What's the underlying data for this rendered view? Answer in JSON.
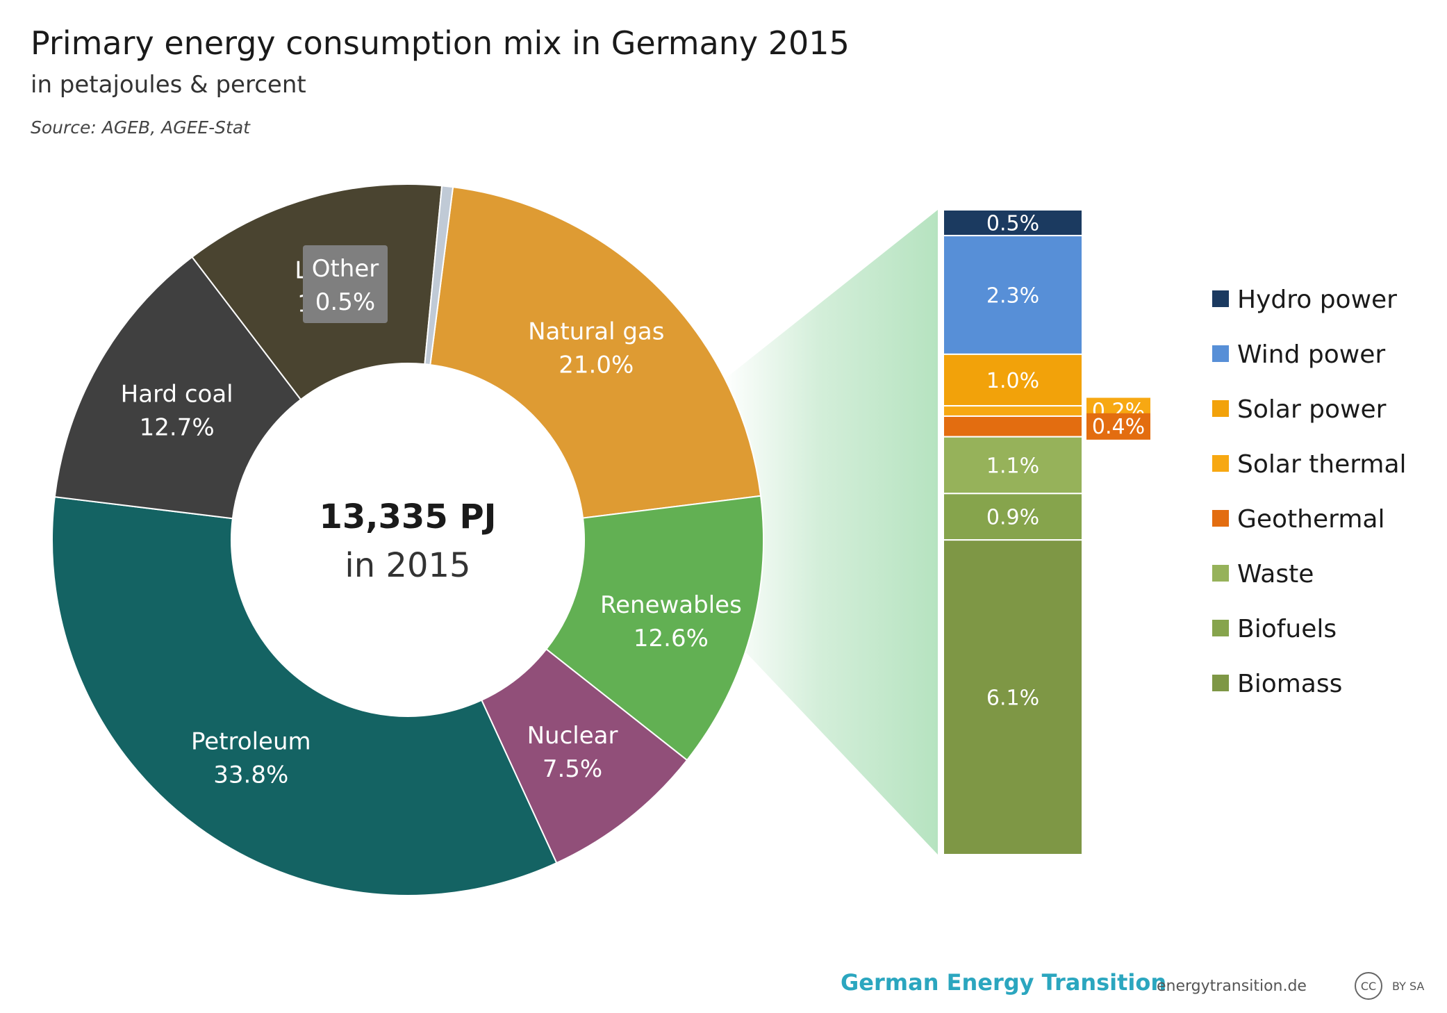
{
  "title": "Primary energy consumption mix in Germany 2015",
  "subtitle": "in petajoules & percent",
  "source": "Source: AGEB, AGEE-Stat",
  "center": {
    "total": "13,335 PJ",
    "year": "in 2015"
  },
  "chart_data": [
    {
      "type": "pie",
      "style": "donut",
      "total_pj": 13335,
      "slices": [
        {
          "name": "Natural gas",
          "value": 21.0,
          "label": "21.0%",
          "color": "#de9b33"
        },
        {
          "name": "Renewables",
          "value": 12.6,
          "label": "12.6%",
          "color": "#62b053"
        },
        {
          "name": "Nuclear",
          "value": 7.5,
          "label": "7.5%",
          "color": "#914f79"
        },
        {
          "name": "Petroleum",
          "value": 33.8,
          "label": "33.8%",
          "color": "#146363"
        },
        {
          "name": "Hard coal",
          "value": 12.7,
          "label": "12.7%",
          "color": "#404040"
        },
        {
          "name": "Lignite",
          "value": 11.9,
          "label": "11.9%",
          "color": "#4a4430"
        },
        {
          "name": "Other",
          "value": 0.5,
          "label": "0.5%",
          "color": "#c0cad6",
          "label_box_color": "#7f7f7f"
        }
      ]
    },
    {
      "type": "bar",
      "style": "stacked",
      "breakdown_of": "Renewables",
      "segments": [
        {
          "name": "Hydro power",
          "value": 0.5,
          "label": "0.5%",
          "color": "#1b3a60"
        },
        {
          "name": "Wind power",
          "value": 2.3,
          "label": "2.3%",
          "color": "#578fd7"
        },
        {
          "name": "Solar power",
          "value": 1.0,
          "label": "1.0%",
          "color": "#f2a20a"
        },
        {
          "name": "Solar thermal",
          "value": 0.2,
          "label": "0.2%",
          "color": "#f7a812",
          "callout": true
        },
        {
          "name": "Geothermal",
          "value": 0.4,
          "label": "0.4%",
          "color": "#e36d10",
          "callout": true
        },
        {
          "name": "Waste",
          "value": 1.1,
          "label": "1.1%",
          "color": "#96b25a"
        },
        {
          "name": "Biofuels",
          "value": 0.9,
          "label": "0.9%",
          "color": "#86a44c"
        },
        {
          "name": "Biomass",
          "value": 6.1,
          "label": "6.1%",
          "color": "#7e9745"
        }
      ]
    }
  ],
  "footer": {
    "brand": "German Energy Transition",
    "url": "energytransition.de",
    "cc": "CC",
    "license": "BY SA"
  }
}
